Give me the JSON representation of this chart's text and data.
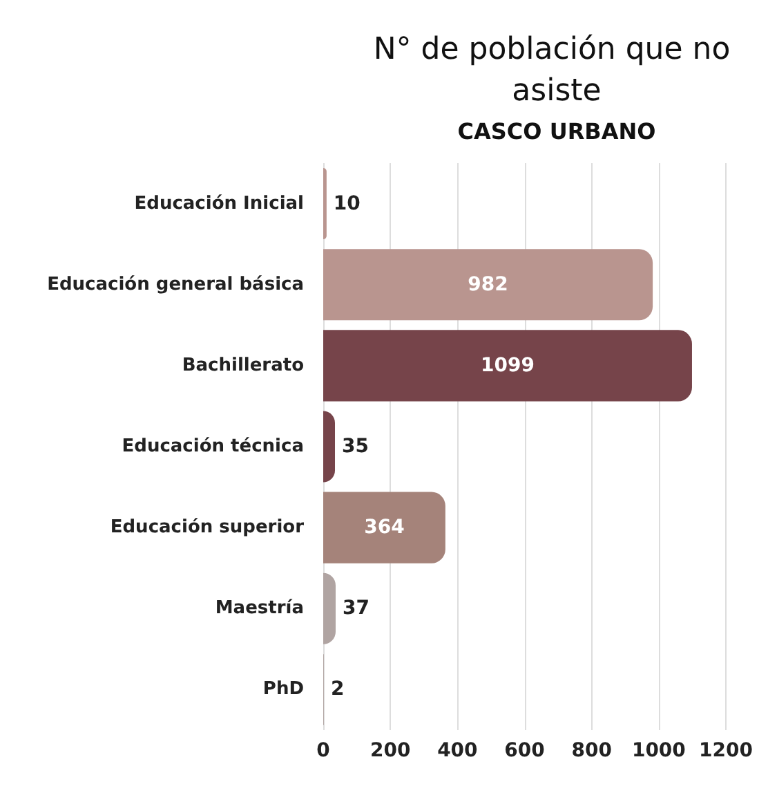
{
  "chart_data": {
    "type": "bar",
    "orientation": "horizontal",
    "title": "N° de población que no asiste",
    "subtitle": "CASCO URBANO",
    "categories": [
      "Educación Inicial",
      "Educación general básica",
      "Bachillerato",
      "Educación técnica",
      "Educación superior",
      "Maestría",
      "PhD"
    ],
    "values": [
      10,
      982,
      1099,
      35,
      364,
      37,
      2
    ],
    "colors": [
      "#b9958f",
      "#b9958f",
      "#76444a",
      "#76444a",
      "#a5837a",
      "#b0a4a2",
      "#b0a4a2"
    ],
    "xlim": [
      0,
      1200
    ],
    "xticks": [
      0,
      200,
      400,
      600,
      800,
      1000,
      1200
    ],
    "grid": "x",
    "data_labels": true
  }
}
